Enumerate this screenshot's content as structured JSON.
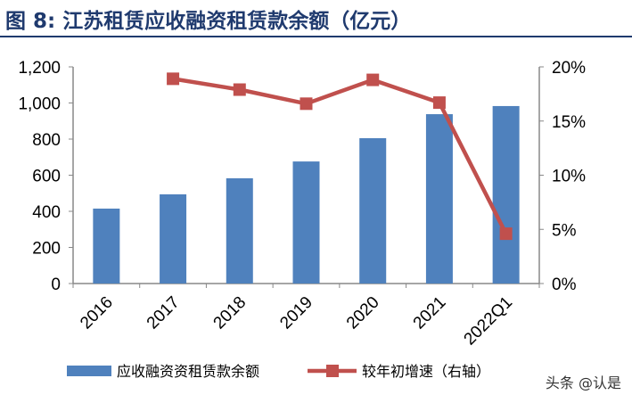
{
  "title": "图 8:  江苏租赁应收融资租赁款余额（亿元）",
  "watermark": "头条 @认是",
  "chart_data": {
    "type": "bar+line",
    "title": "图 8:  江苏租赁应收融资租赁款余额（亿元）",
    "categories": [
      "2016",
      "2017",
      "2018",
      "2019",
      "2020",
      "2021",
      "2022Q1"
    ],
    "left_axis": {
      "ylim": [
        0,
        1200
      ],
      "ticks": [
        "0",
        "200",
        "400",
        "600",
        "800",
        "1,000",
        "1,200"
      ],
      "tick_values": [
        0,
        200,
        400,
        600,
        800,
        1000,
        1200
      ]
    },
    "right_axis": {
      "ylim": [
        0,
        20
      ],
      "ticks": [
        "0%",
        "5%",
        "10%",
        "15%",
        "20%"
      ],
      "tick_values": [
        0,
        5,
        10,
        15,
        20
      ]
    },
    "series": [
      {
        "name": "应收融资资租赁款余额",
        "type": "bar",
        "axis": "left",
        "color": "#4f81bd",
        "values": [
          415,
          494,
          583,
          676,
          805,
          938,
          983
        ]
      },
      {
        "name": "较年初增速（右轴）",
        "type": "line",
        "axis": "right",
        "color": "#c0504d",
        "values": [
          null,
          18.9,
          17.9,
          16.6,
          18.8,
          16.7,
          4.6
        ]
      }
    ],
    "grid": false,
    "legend": "bottom"
  }
}
